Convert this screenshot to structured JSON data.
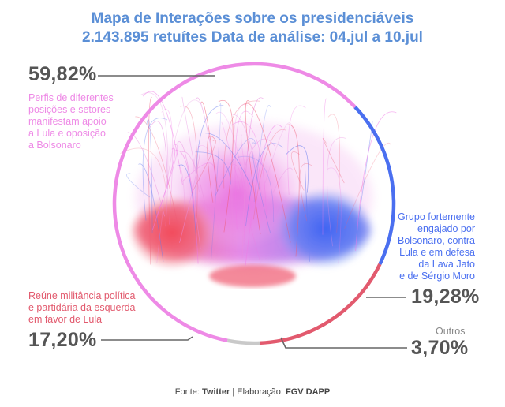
{
  "title": "Mapa de Interações sobre os presidenciáveis",
  "subtitle": "2.143.895 retuítes Data de análise: 04.jul a 10.jul",
  "colors": {
    "title": "#5b8fd6",
    "pink": "#ee8ae6",
    "blue": "#4a6ff0",
    "red": "#e25a6e",
    "gray": "#c9c9c9",
    "label_gray": "#555555"
  },
  "chart_data": {
    "type": "pie",
    "categories": [
      "Perfis de diferentes posições e setores manifestam apoio a Lula e oposição a Bolsonaro",
      "Grupo fortemente engajado por Bolsonaro, contra Lula e em defesa da Lava Jato e de Sérgio Moro",
      "Reúne militância política e partidária da esquerda em favor de Lula",
      "Outros"
    ],
    "values": [
      59.82,
      19.28,
      17.2,
      3.7
    ],
    "labels": [
      "59,82%",
      "19,28%",
      "17,20%",
      "3,70%"
    ],
    "colors": [
      "#ee8ae6",
      "#4a6ff0",
      "#e25a6e",
      "#c9c9c9"
    ]
  },
  "annotations": {
    "pink": {
      "pct": "59,82%",
      "lines": [
        "Perfis de diferentes",
        "posições e setores",
        "manifestam apoio",
        "a Lula e oposição",
        "a Bolsonaro"
      ]
    },
    "blue": {
      "pct": "19,28%",
      "lines": [
        "Grupo fortemente",
        "engajado por",
        "Bolsonaro, contra",
        "Lula e em defesa",
        "da Lava Jato",
        "e de Sérgio Moro"
      ]
    },
    "red": {
      "pct": "17,20%",
      "lines": [
        "Reúne militância política",
        "e partidária da esquerda",
        "em favor de Lula"
      ]
    },
    "gray": {
      "pct": "3,70%",
      "lines": [
        "Outros"
      ]
    }
  },
  "footer": {
    "prefix": "Fonte: ",
    "source": "Twitter",
    "separator": " | Elaboração: ",
    "author": "FGV DAPP"
  }
}
